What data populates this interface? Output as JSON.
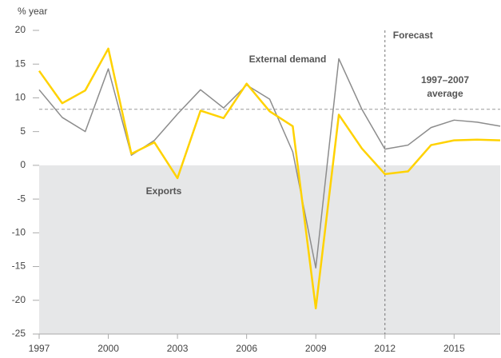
{
  "chart_data": {
    "type": "line",
    "y_axis_label": "% year",
    "x": [
      1997,
      1998,
      1999,
      2000,
      2001,
      2002,
      2003,
      2004,
      2005,
      2006,
      2007,
      2008,
      2009,
      2010,
      2011,
      2012,
      2013,
      2014,
      2015,
      2016,
      2017
    ],
    "series": [
      {
        "name": "Exports",
        "color": "#ffd200",
        "values": [
          14,
          9.2,
          11.1,
          17.3,
          1.7,
          3.4,
          -1.9,
          8.1,
          7.0,
          12.1,
          8.0,
          5.8,
          -21.2,
          7.5,
          2.5,
          -1.3,
          -0.9,
          3.0,
          3.7,
          3.8,
          3.7
        ]
      },
      {
        "name": "External demand",
        "color": "#8c8c8c",
        "values": [
          11.2,
          7.1,
          5.0,
          14.3,
          1.5,
          3.7,
          7.6,
          11.2,
          8.5,
          11.9,
          9.8,
          2.0,
          -15.2,
          15.8,
          8.3,
          2.4,
          3.0,
          5.6,
          6.7,
          6.4,
          5.8
        ]
      }
    ],
    "xlim": [
      1997,
      2017
    ],
    "xticks": [
      1997,
      2000,
      2003,
      2006,
      2009,
      2012,
      2015
    ],
    "ylim": [
      -25,
      20
    ],
    "yticks": [
      -25,
      -20,
      -15,
      -10,
      -5,
      0,
      5,
      10,
      15,
      20
    ],
    "average_value": 8.3,
    "average_label": [
      "1997–2007",
      "average"
    ],
    "forecast_start": 2012,
    "forecast_label": "Forecast",
    "negative_shading": true
  }
}
